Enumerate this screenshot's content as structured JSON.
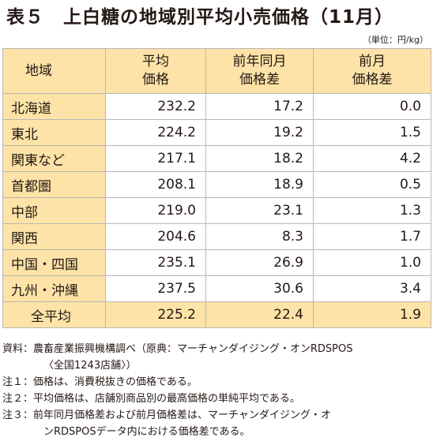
{
  "title": "表５　上白糖の地域別平均小売価格（11月）",
  "unit": "（単位：円/kg）",
  "table": {
    "headers": [
      "地域",
      "平均\n価格",
      "前年同月\n価格差",
      "前月\n価格差"
    ],
    "rows": [
      {
        "area": "北海道",
        "avg": "232.2",
        "yoy": "17.2",
        "mom": "0.0"
      },
      {
        "area": "東北",
        "avg": "224.2",
        "yoy": "19.2",
        "mom": "1.5"
      },
      {
        "area": "関東など",
        "avg": "217.1",
        "yoy": "18.2",
        "mom": "4.2"
      },
      {
        "area": "首都圏",
        "avg": "208.1",
        "yoy": "18.9",
        "mom": "0.5"
      },
      {
        "area": "中部",
        "avg": "219.0",
        "yoy": "23.1",
        "mom": "1.3"
      },
      {
        "area": "関西",
        "avg": "204.6",
        "yoy": "8.3",
        "mom": "1.7"
      },
      {
        "area": "中国・四国",
        "avg": "235.1",
        "yoy": "26.9",
        "mom": "1.0"
      },
      {
        "area": "九州・沖縄",
        "avg": "237.5",
        "yoy": "30.6",
        "mom": "3.4"
      },
      {
        "area": "全平均",
        "avg": "225.2",
        "yoy": "22.4",
        "mom": "1.9"
      }
    ]
  },
  "notes": {
    "source_label": "資料：",
    "source_line1": "農畜産業振興機構調べ（原典：マーチャンダイジング・オンRDSPOS",
    "source_line2": "〈全国1243店舗〉）",
    "note1_label": "注１：",
    "note1": "価格は、消費税抜きの価格である。",
    "note2_label": "注２：",
    "note2": "平均価格は、店舗別商品別の最高価格の単純平均である。",
    "note3_label": "注３：",
    "note3_line1": "前年同月価格差および前月価格差は、マーチャンダイジング・オ",
    "note3_line2": "ンRDSPOSデータ内における価格差である。"
  },
  "colors": {
    "header_fill": "#fde3a7",
    "border": "#b7b7b7",
    "text": "#231815"
  }
}
